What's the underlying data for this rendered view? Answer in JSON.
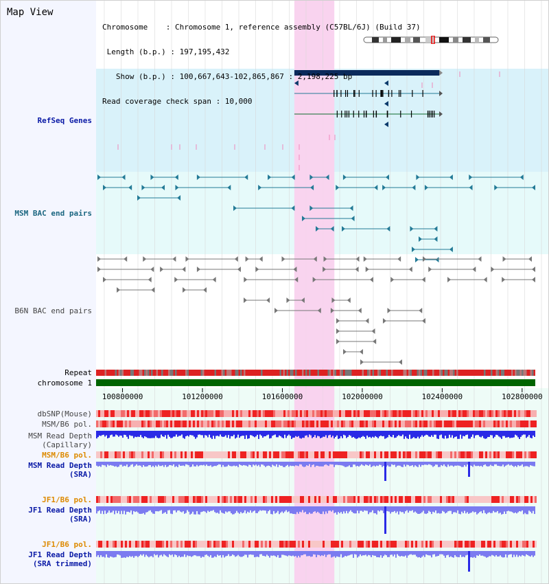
{
  "header": {
    "title": "Map View",
    "info_lines": [
      "Chromosome    : Chromosome 1, reference assembly (C57BL/6J) (Build 37)",
      " Length (b.p.) : 197,195,432",
      "   Show (b.p.) : 100,667,643-102,865,867 : 2,198,225 bp",
      "Read coverage check span : 10,000"
    ]
  },
  "tracks": [
    {
      "id": "refseq",
      "label": "RefSeq Genes",
      "style": "blue"
    },
    {
      "id": "msm_bac",
      "label": "MSM BAC end pairs",
      "style": "teal"
    },
    {
      "id": "b6n_bac",
      "label": "B6N BAC end pairs",
      "style": "gray"
    },
    {
      "id": "repeat",
      "label": "Repeat",
      "style": "plain"
    },
    {
      "id": "chromosome",
      "label": "chromosome 1",
      "style": "plain"
    },
    {
      "id": "dbsnp",
      "label": "dbSNP(Mouse)",
      "style": "gray"
    },
    {
      "id": "msm_b6_pol_1",
      "label": "MSM/B6 pol.",
      "style": "gray"
    },
    {
      "id": "msm_depth_cap",
      "label": "MSM Read Depth",
      "label2": "(Capillary)",
      "style": "gray"
    },
    {
      "id": "msm_b6_pol_2",
      "label": "MSM/B6 pol.",
      "style": "orange"
    },
    {
      "id": "msm_depth_sra",
      "label": "MSM Read Depth",
      "label2": "(SRA)",
      "style": "blue"
    },
    {
      "id": "jf1_b6_pol_1",
      "label": "JF1/B6 pol.",
      "style": "orange"
    },
    {
      "id": "jf1_depth_sra",
      "label": "JF1 Read Depth",
      "label2": "(SRA)",
      "style": "blue"
    },
    {
      "id": "jf1_b6_pol_2",
      "label": "JF1/B6 pol.",
      "style": "orange"
    },
    {
      "id": "jf1_depth_trim",
      "label": "JF1 Read Depth",
      "label2": "(SRA trimmed)",
      "style": "blue"
    }
  ],
  "axis": {
    "ticks": [
      "100800000",
      "101200000",
      "101600000",
      "102000000",
      "102400000",
      "102800000"
    ],
    "tick_values": [
      100800000,
      101200000,
      101600000,
      102000000,
      102400000,
      102800000
    ],
    "range": [
      100667643,
      102865867
    ]
  },
  "highlight_region": [
    101660000,
    101860000
  ],
  "colors": {
    "refseq_bg": "#d9f2fa",
    "bac_bg": "#e6fafa",
    "highlight": "#f9d3ef",
    "gene_dark": "#0b2a5b",
    "msm_feature": "#237a96",
    "b6n_feature": "#777777",
    "chromosome_bar": "#006400",
    "depth_dark": "#2a2ae6",
    "depth_light": "#7b7bf0",
    "pol_red": "#ee2222",
    "pol_pink": "#f7b0b0"
  }
}
